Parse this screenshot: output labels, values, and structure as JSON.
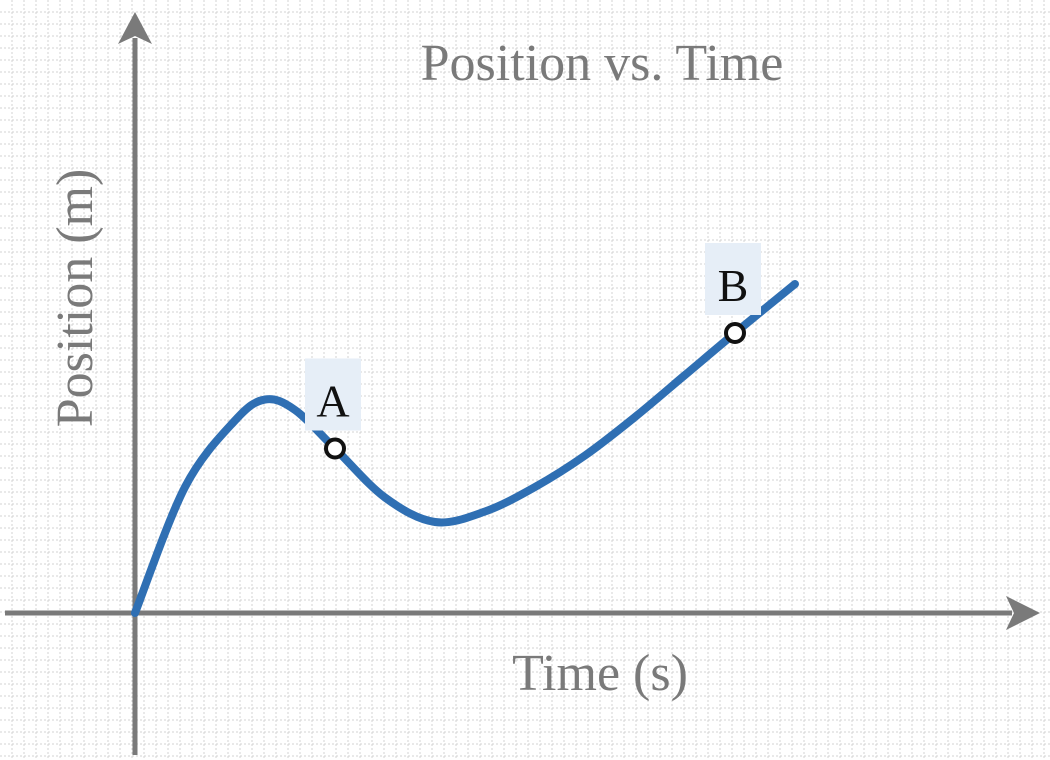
{
  "chart_data": {
    "type": "line",
    "title": "Position vs. Time",
    "xlabel": "Time (s)",
    "ylabel": "Position (m)",
    "grid": true,
    "legend": "none",
    "axis_ticks": "none",
    "colors": {
      "curve": "#2f6fb3",
      "axes": "#7a7a7a",
      "grid": "#cfcfcf",
      "point_label_bg": "#e6eef7",
      "point_marker": "#111111"
    },
    "series": [
      {
        "values": [
          {
            "x": 0.0,
            "y": 0.0
          },
          {
            "x": 0.5,
            "y": 3.6
          },
          {
            "x": 1.0,
            "y": 5.5
          },
          {
            "x": 1.3,
            "y": 6.1
          },
          {
            "x": 1.6,
            "y": 5.8
          },
          {
            "x": 2.0,
            "y": 4.7
          },
          {
            "x": 2.5,
            "y": 3.3
          },
          {
            "x": 3.0,
            "y": 2.6
          },
          {
            "x": 3.5,
            "y": 2.9
          },
          {
            "x": 4.0,
            "y": 3.6
          },
          {
            "x": 4.5,
            "y": 4.5
          },
          {
            "x": 5.0,
            "y": 5.6
          },
          {
            "x": 5.5,
            "y": 6.8
          },
          {
            "x": 6.0,
            "y": 8.0
          },
          {
            "x": 6.6,
            "y": 9.4
          }
        ]
      }
    ],
    "points": [
      {
        "label": "A",
        "x": 2.0,
        "y": 4.7
      },
      {
        "label": "B",
        "x": 6.0,
        "y": 8.0
      }
    ]
  }
}
